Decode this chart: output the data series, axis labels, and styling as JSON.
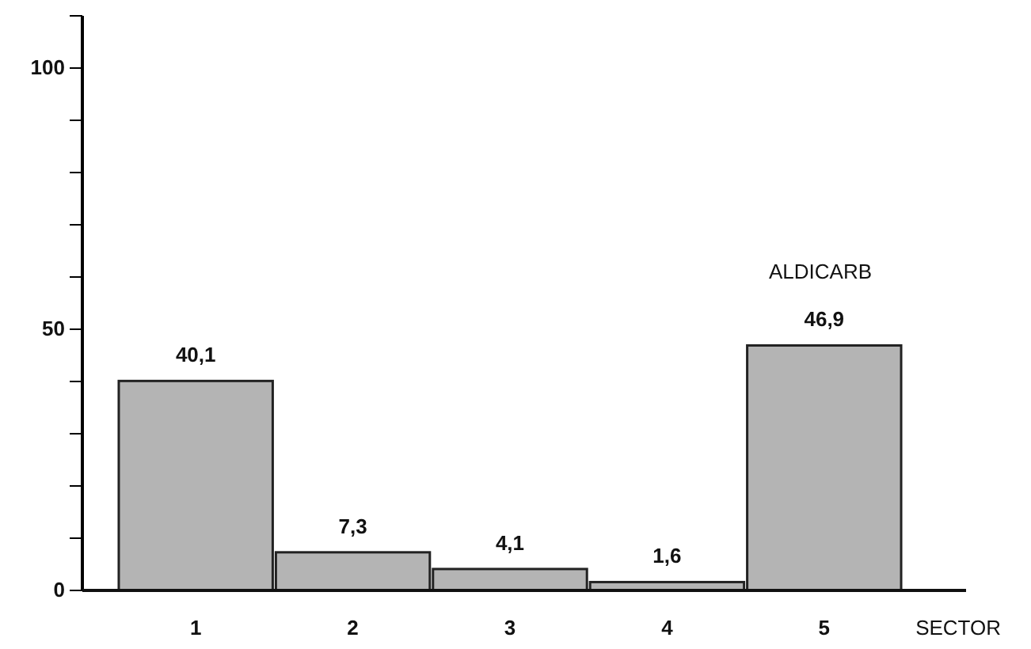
{
  "chart_data": {
    "type": "bar",
    "title": "ALDICARB",
    "xlabel": "SECTOR",
    "categories": [
      "1",
      "2",
      "3",
      "4",
      "5"
    ],
    "values": [
      40.1,
      7.3,
      4.1,
      1.6,
      46.9
    ],
    "value_labels": [
      "40,1",
      "7,3",
      "4,1",
      "1,6",
      "46,9"
    ],
    "color": "#b4b4b4",
    "ylim": [
      0,
      110
    ],
    "yticks": [
      0,
      {
        "value": 10,
        "label": null
      },
      {
        "value": 20,
        "label": null
      },
      {
        "value": 30,
        "label": null
      },
      {
        "value": 40,
        "label": null
      },
      50,
      {
        "value": 60,
        "label": null
      },
      {
        "value": 70,
        "label": null
      },
      {
        "value": 80,
        "label": null
      },
      {
        "value": 90,
        "label": null
      },
      100,
      {
        "value": 110,
        "label": null
      }
    ],
    "grid": false
  }
}
